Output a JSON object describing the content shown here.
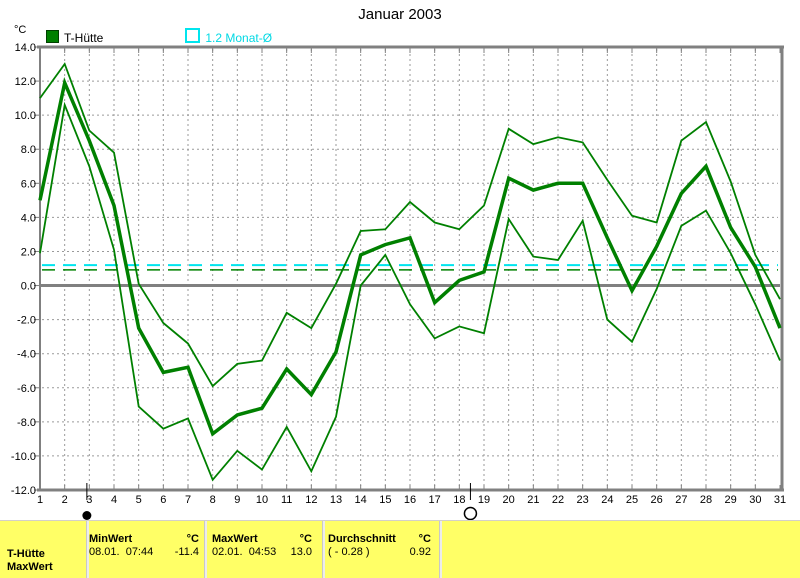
{
  "title": "Januar 2003",
  "axis_unit": "°C",
  "legend": {
    "series1_label": "T-Hütte",
    "series2_label": "1.2 Monat-Ø"
  },
  "colors": {
    "series_green": "#008000",
    "monthly_norm_cyan": "#00e5ee",
    "grid_gray": "#9a9a9a",
    "axis_gray": "#808080",
    "panel_yellow": "#ffff66"
  },
  "chart_data": {
    "type": "line",
    "x": [
      1,
      2,
      3,
      4,
      5,
      6,
      7,
      8,
      9,
      10,
      11,
      12,
      13,
      14,
      15,
      16,
      17,
      18,
      19,
      20,
      21,
      22,
      23,
      24,
      25,
      26,
      27,
      28,
      29,
      30,
      31
    ],
    "series": [
      {
        "name": "T-Hütte Tagesmaximum",
        "width": 1.8,
        "values": [
          11.0,
          13.0,
          9.1,
          7.8,
          0.1,
          -2.2,
          -3.4,
          -5.9,
          -4.6,
          -4.4,
          -1.6,
          -2.5,
          0.1,
          3.2,
          3.3,
          4.9,
          3.7,
          3.3,
          4.7,
          9.2,
          8.3,
          8.7,
          8.4,
          6.2,
          4.1,
          3.7,
          8.5,
          9.6,
          6.1,
          1.8,
          -0.8
        ]
      },
      {
        "name": "T-Hütte Tagesminimum",
        "width": 1.8,
        "values": [
          1.9,
          10.6,
          7.0,
          2.1,
          -7.1,
          -8.4,
          -7.8,
          -11.4,
          -9.7,
          -10.8,
          -8.3,
          -10.9,
          -7.7,
          0.0,
          1.8,
          -1.1,
          -3.1,
          -2.4,
          -2.8,
          3.9,
          1.7,
          1.5,
          3.8,
          -2.0,
          -3.3,
          -0.2,
          3.5,
          4.4,
          1.9,
          -1.1,
          -4.4
        ]
      },
      {
        "name": "T-Hütte Tagesmittel",
        "width": 3.5,
        "values": [
          5.0,
          11.9,
          8.5,
          4.7,
          -2.5,
          -5.1,
          -4.8,
          -8.7,
          -7.6,
          -7.2,
          -4.9,
          -6.4,
          -3.9,
          1.8,
          2.4,
          2.8,
          -1.0,
          0.3,
          0.8,
          6.3,
          5.6,
          6.0,
          6.0,
          2.8,
          -0.3,
          2.3,
          5.4,
          7.0,
          3.4,
          1.1,
          -2.5
        ]
      }
    ],
    "reference_lines": [
      {
        "label": "1.2 Monat-Ø",
        "value": 1.2,
        "color": "#00e5ee",
        "width": 2
      },
      {
        "label": "Durchschnitt 0.92",
        "value": 0.92,
        "color": "#008000",
        "width": 1.5
      }
    ],
    "y_ticks": [
      14,
      12,
      10,
      8,
      6,
      4,
      2,
      0,
      -2,
      -4,
      -6,
      -8,
      -10,
      -12
    ],
    "ylim": [
      -12,
      14
    ],
    "ylabel": "°C",
    "xlabel": "",
    "legend_position": "top-left",
    "grid": true,
    "moon_markers": [
      {
        "day": 2.9,
        "phase": "new-moon"
      },
      {
        "day": 18.45,
        "phase": "full-moon"
      }
    ]
  },
  "status_bar": {
    "selected_row": {
      "line1": "T-Hütte",
      "line2": "MaxWert"
    },
    "min": {
      "label": "MinWert",
      "unit": "°C",
      "datetime": "08.01.  07:44",
      "value": "-11.4"
    },
    "max": {
      "label": "MaxWert",
      "unit": "°C",
      "datetime": "02.01.  04:53",
      "value": "13.0"
    },
    "avg": {
      "label": "Durchschnitt",
      "unit": "°C",
      "deviation": "( - 0.28 )",
      "value": "0.92"
    }
  }
}
